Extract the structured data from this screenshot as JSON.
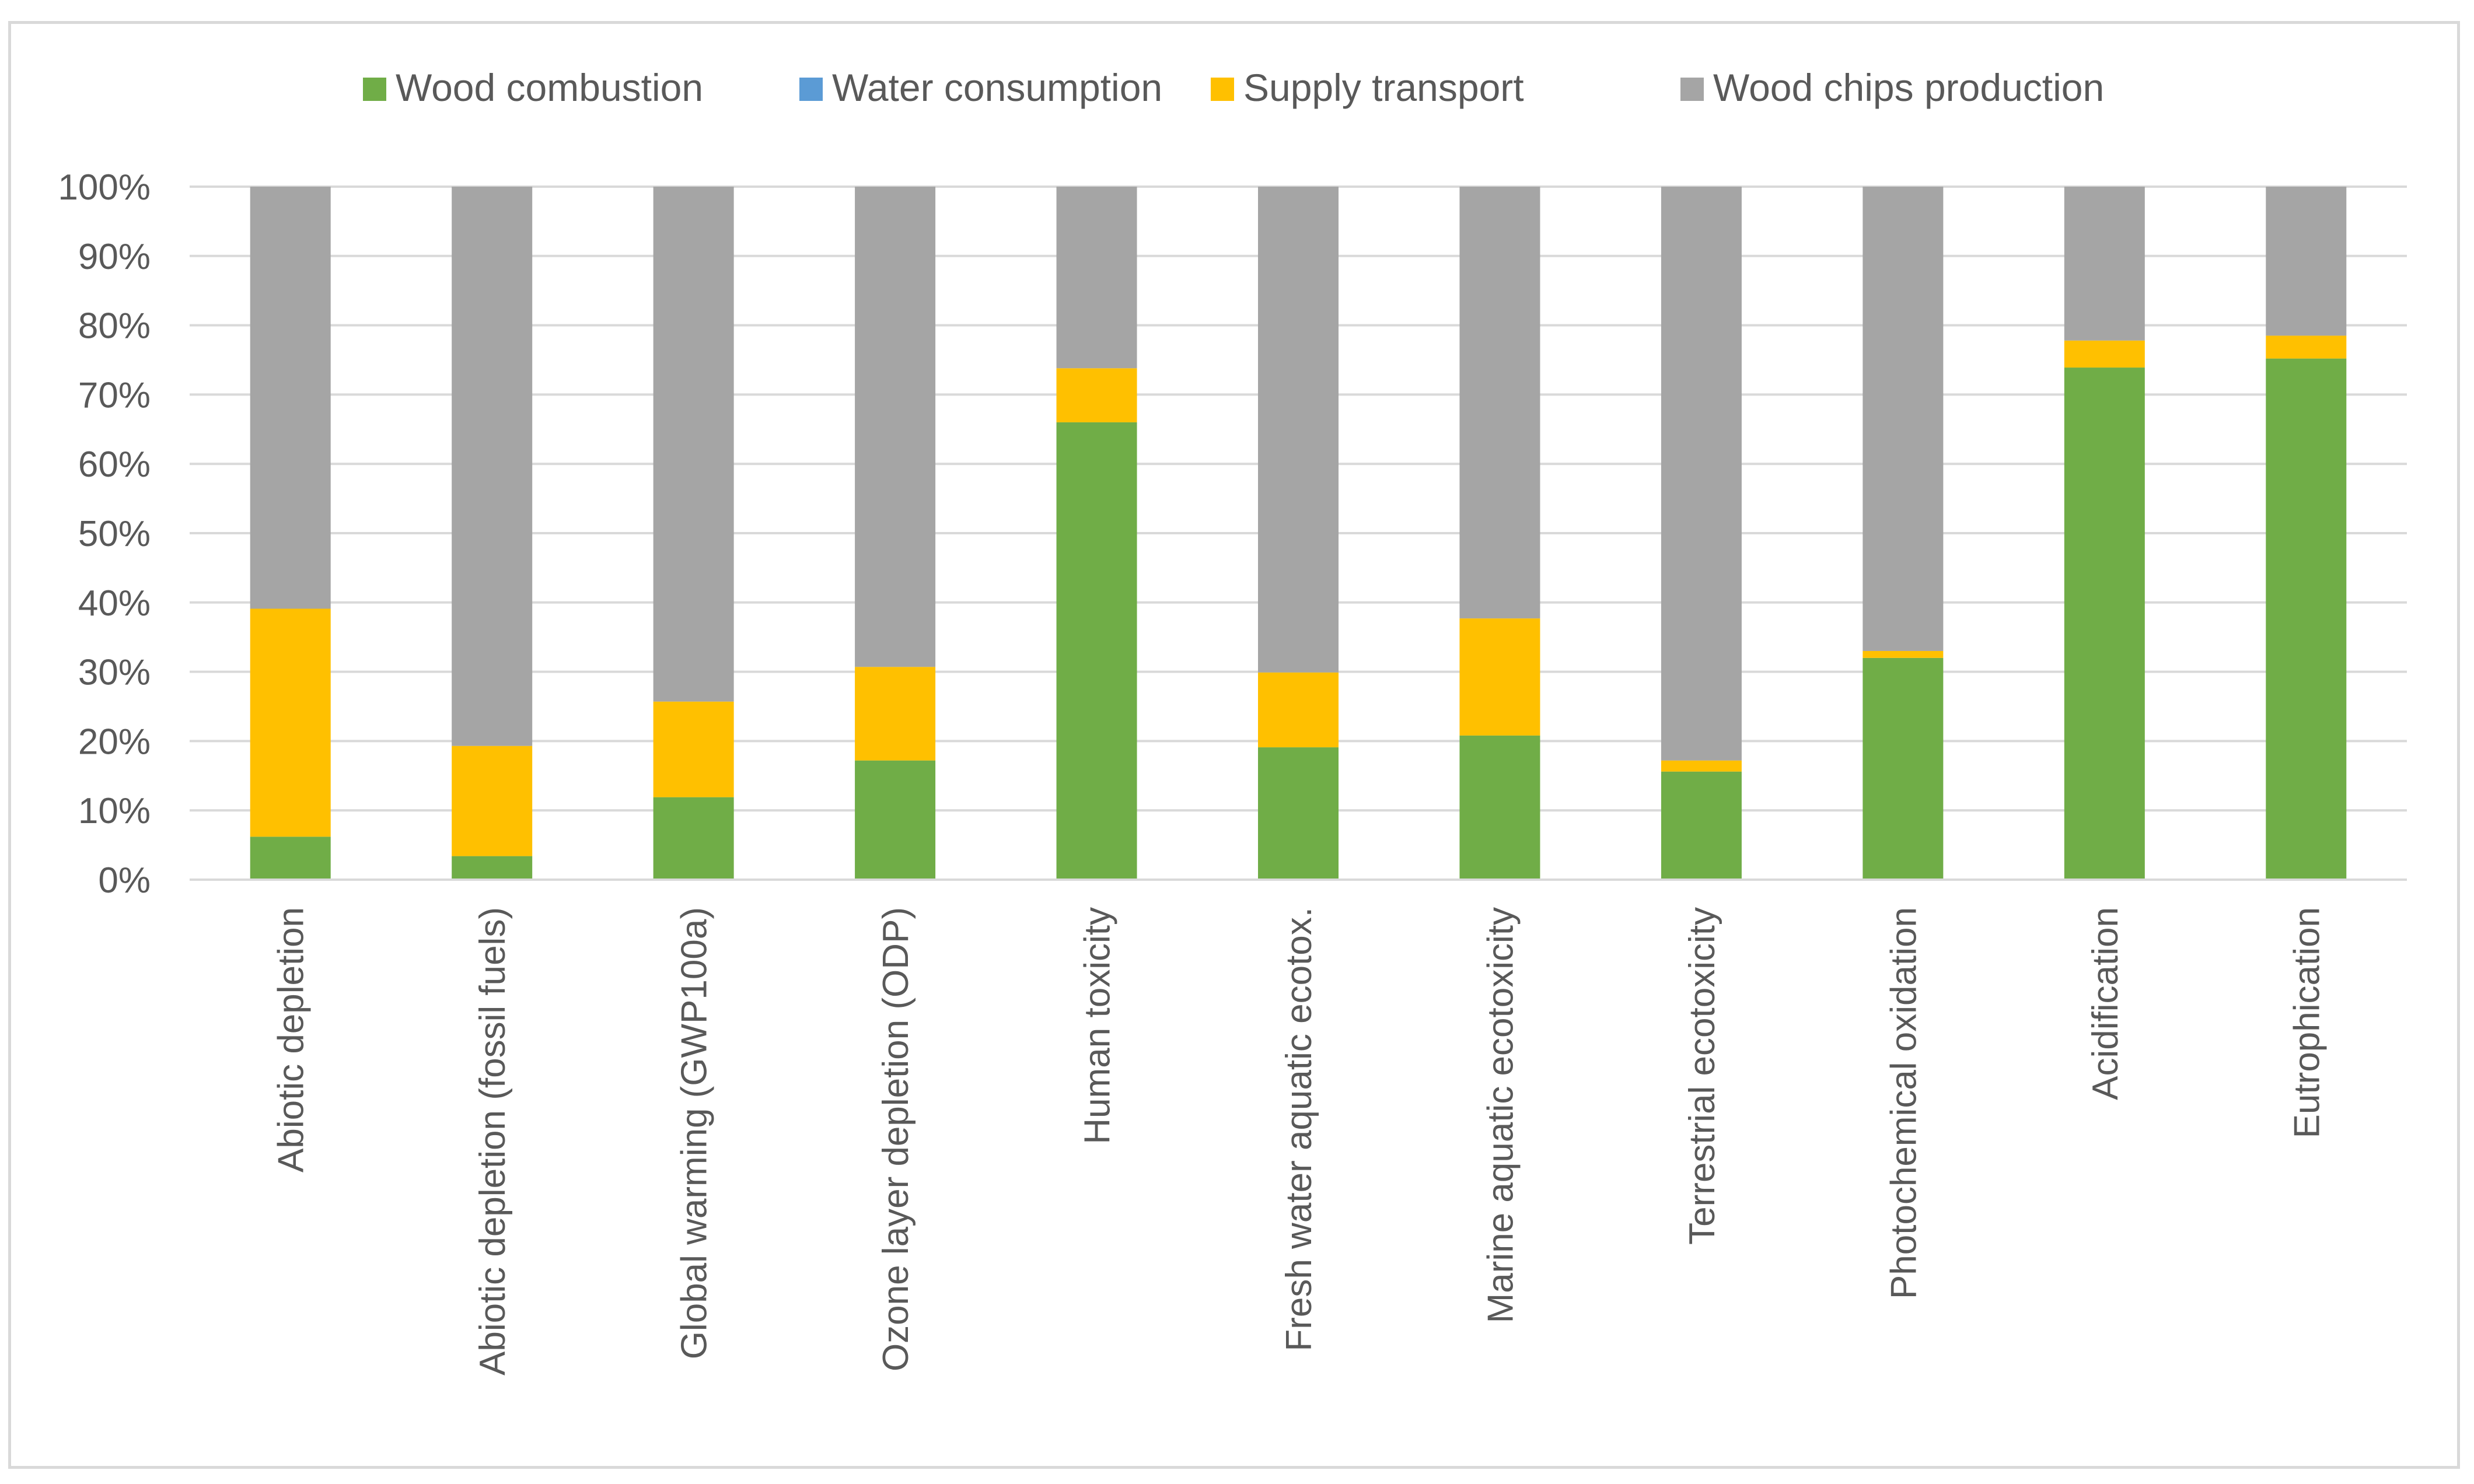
{
  "chart_data": {
    "type": "bar",
    "stacked": true,
    "percent_stacked": true,
    "title": "",
    "xlabel": "",
    "ylabel": "",
    "ylim": [
      0,
      100
    ],
    "y_ticks": [
      "0%",
      "10%",
      "20%",
      "30%",
      "40%",
      "50%",
      "60%",
      "70%",
      "80%",
      "90%",
      "100%"
    ],
    "grid": true,
    "legend_position": "top",
    "categories": [
      "Abiotic depletion",
      "Abiotic depletion (fossil fuels)",
      "Global warming (GWP100a)",
      "Ozone layer depletion (ODP)",
      "Human toxicity",
      "Fresh water aquatic ecotox.",
      "Marine aquatic ecotoxicity",
      "Terrestrial ecotoxicity",
      "Photochemical oxidation",
      "Acidification",
      "Eutrophication"
    ],
    "series": [
      {
        "name": "Wood combustion",
        "color": "#70ad47",
        "values": [
          6.2,
          3.4,
          11.9,
          17.2,
          66.0,
          19.1,
          20.8,
          15.6,
          32.0,
          73.9,
          75.2
        ]
      },
      {
        "name": "Water consumption",
        "color": "#5b9bd5",
        "values": [
          0,
          0,
          0,
          0,
          0,
          0,
          0,
          0,
          0,
          0,
          0
        ]
      },
      {
        "name": "Supply transport",
        "color": "#ffc000",
        "values": [
          32.9,
          15.9,
          13.8,
          13.5,
          7.8,
          10.8,
          16.9,
          1.6,
          1.0,
          3.9,
          3.3
        ]
      },
      {
        "name": "Wood chips production",
        "color": "#a5a5a5",
        "values": [
          60.9,
          80.7,
          74.3,
          69.3,
          26.2,
          70.1,
          62.3,
          82.8,
          67.0,
          22.2,
          21.5
        ]
      }
    ]
  },
  "style": {
    "gridline_color": "#d9d9d9",
    "axis_color": "#d9d9d9",
    "text_color": "#595959"
  }
}
